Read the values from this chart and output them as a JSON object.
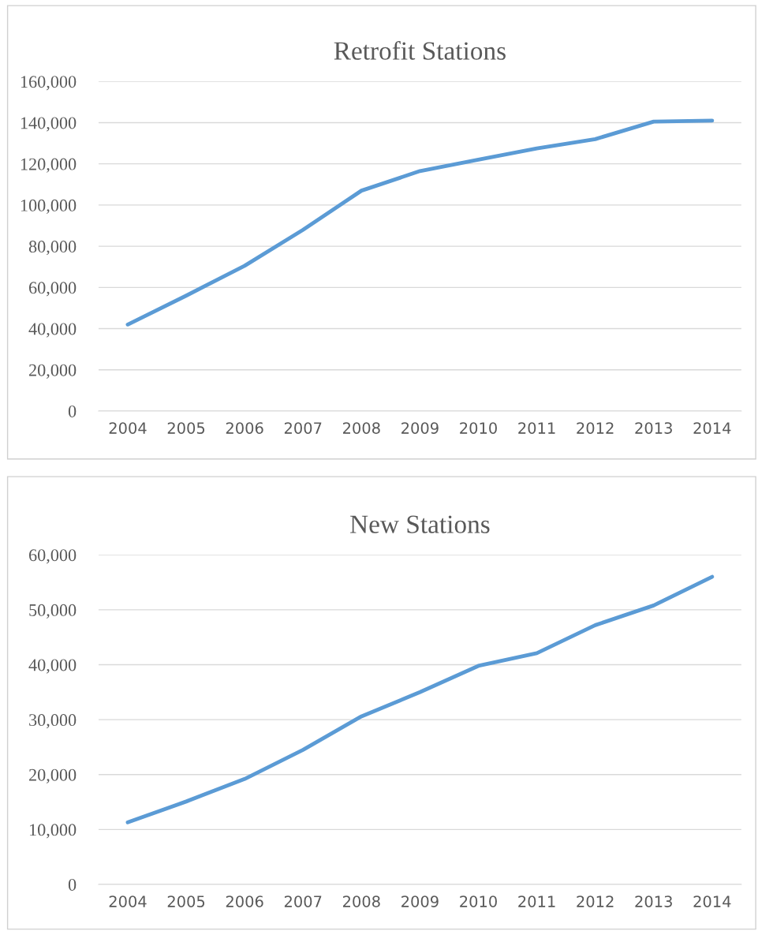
{
  "chart_data": [
    {
      "type": "line",
      "title": "Retrofit Stations",
      "categories": [
        "2004",
        "2005",
        "2006",
        "2007",
        "2008",
        "2009",
        "2010",
        "2011",
        "2012",
        "2013",
        "2014"
      ],
      "series": [
        {
          "color": "#5b9bd5",
          "values": [
            42000,
            56000,
            70500,
            88000,
            107000,
            116500,
            122000,
            127500,
            132000,
            140500,
            141000
          ]
        }
      ],
      "ylim": [
        0,
        160000
      ],
      "yticks": [
        {
          "value": 0,
          "label": "0"
        },
        {
          "value": 20000,
          "label": "20,000"
        },
        {
          "value": 40000,
          "label": "40,000"
        },
        {
          "value": 60000,
          "label": "60,000"
        },
        {
          "value": 80000,
          "label": "80,000"
        },
        {
          "value": 100000,
          "label": "100,000"
        },
        {
          "value": 120000,
          "label": "120,000"
        },
        {
          "value": 140000,
          "label": "140,000"
        },
        {
          "value": 160000,
          "label": "160,000"
        }
      ],
      "grid": "y",
      "legend": false
    },
    {
      "type": "line",
      "title": "New Stations",
      "categories": [
        "2004",
        "2005",
        "2006",
        "2007",
        "2008",
        "2009",
        "2010",
        "2011",
        "2012",
        "2013",
        "2014"
      ],
      "series": [
        {
          "color": "#5b9bd5",
          "values": [
            11300,
            15100,
            19200,
            24500,
            30600,
            35000,
            39800,
            42100,
            47200,
            50800,
            56000
          ]
        }
      ],
      "ylim": [
        0,
        60000
      ],
      "yticks": [
        {
          "value": 0,
          "label": "0"
        },
        {
          "value": 10000,
          "label": "10,000"
        },
        {
          "value": 20000,
          "label": "20,000"
        },
        {
          "value": 30000,
          "label": "30,000"
        },
        {
          "value": 40000,
          "label": "40,000"
        },
        {
          "value": 50000,
          "label": "50,000"
        },
        {
          "value": 60000,
          "label": "60,000"
        }
      ],
      "grid": "y",
      "legend": false
    }
  ]
}
